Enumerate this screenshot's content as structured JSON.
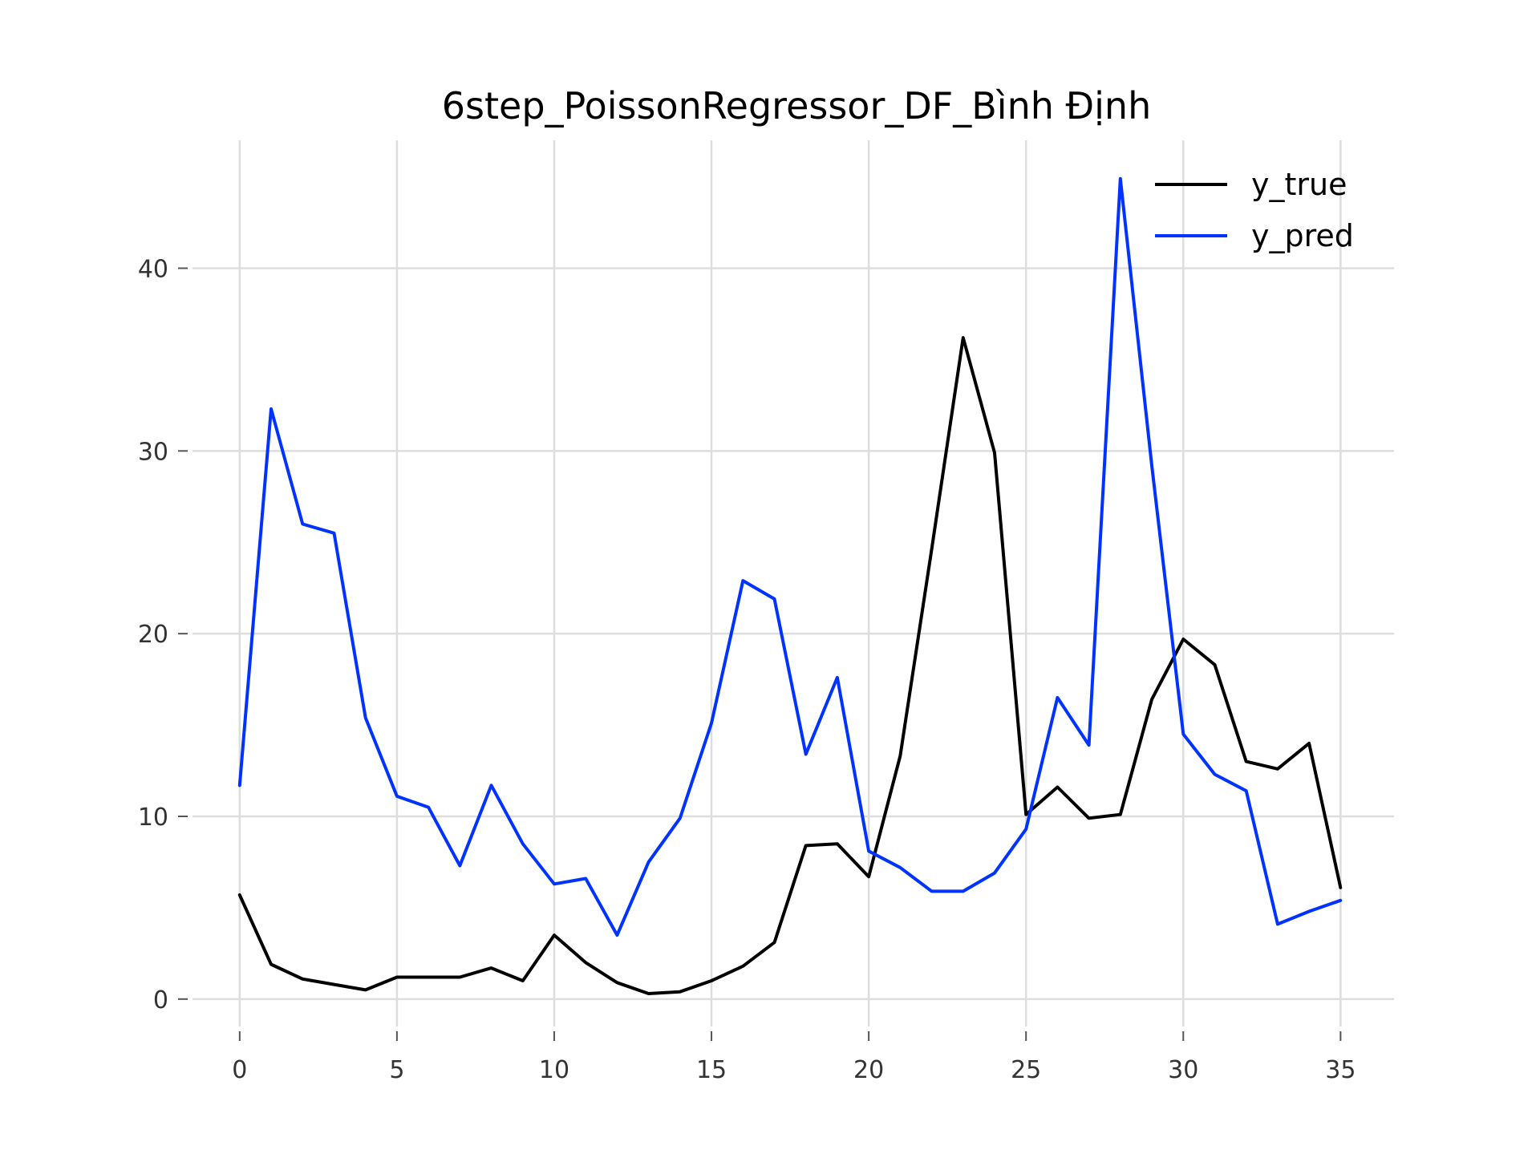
{
  "chart_data": {
    "type": "line",
    "title": "6step_PoissonRegressor_DF_Bình Định",
    "xlabel": "",
    "ylabel": "",
    "x": [
      0,
      1,
      2,
      3,
      4,
      5,
      6,
      7,
      8,
      9,
      10,
      11,
      12,
      13,
      14,
      15,
      16,
      17,
      18,
      19,
      20,
      21,
      22,
      23,
      24,
      25,
      26,
      27,
      28,
      29,
      30,
      31,
      32,
      33,
      34,
      35
    ],
    "xlim": [
      -1.5,
      36.7
    ],
    "ylim": [
      -1.5,
      47
    ],
    "xticks": [
      0,
      5,
      10,
      15,
      20,
      25,
      30,
      35
    ],
    "yticks": [
      0,
      10,
      20,
      30,
      40
    ],
    "grid": true,
    "legend_position": "top-right",
    "series": [
      {
        "name": "y_true",
        "color": "#000000",
        "values": [
          5.7,
          1.9,
          1.1,
          0.8,
          0.5,
          1.2,
          1.2,
          1.2,
          1.7,
          1.0,
          3.5,
          2.0,
          0.9,
          0.3,
          0.4,
          1.0,
          1.8,
          3.1,
          8.4,
          8.5,
          6.7,
          13.3,
          24.6,
          36.2,
          29.9,
          10.1,
          11.6,
          9.9,
          10.1,
          16.4,
          19.7,
          18.3,
          13.0,
          12.6,
          14.0,
          6.1
        ]
      },
      {
        "name": "y_pred",
        "color": "#0033ff",
        "values": [
          11.7,
          32.3,
          26.0,
          25.5,
          15.4,
          11.1,
          10.5,
          7.3,
          11.7,
          8.5,
          6.3,
          6.6,
          3.5,
          7.5,
          9.9,
          15.1,
          22.9,
          21.9,
          13.4,
          17.6,
          8.1,
          7.2,
          5.9,
          5.9,
          6.9,
          9.3,
          16.5,
          13.9,
          44.9,
          29.2,
          14.5,
          12.3,
          11.4,
          4.1,
          4.8,
          5.4
        ]
      }
    ]
  }
}
